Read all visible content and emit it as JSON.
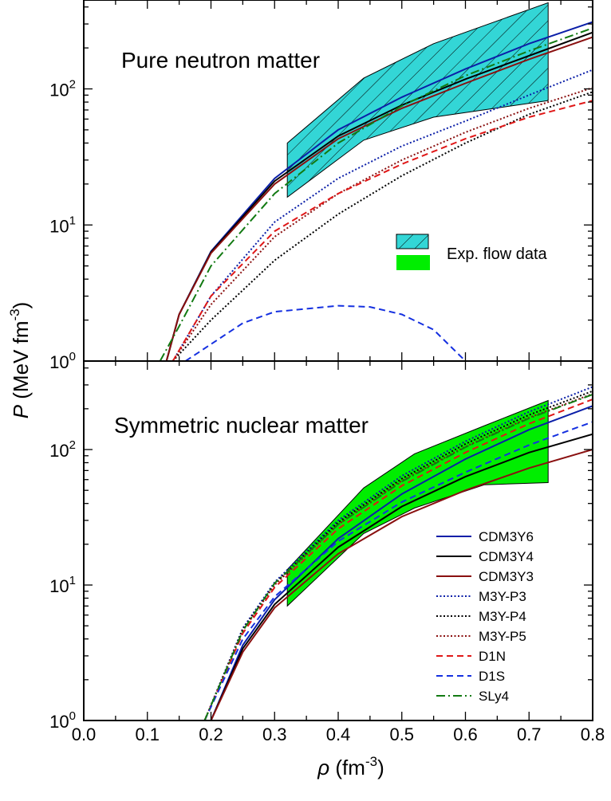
{
  "chart_data": [
    {
      "type": "line",
      "panel_title": "Pure neutron matter",
      "x_ticks": [
        "0.0",
        "0.1",
        "0.2",
        "0.3",
        "0.4",
        "0.5",
        "0.6",
        "0.7",
        "0.8"
      ],
      "xlim": [
        0.0,
        0.8
      ],
      "ylim": [
        1,
        450
      ],
      "y_scale": "log",
      "y_ticks": [
        {
          "base": "10",
          "exp": "0"
        },
        {
          "base": "10",
          "exp": "1"
        },
        {
          "base": "10",
          "exp": "2"
        }
      ],
      "band": {
        "style": "hatched",
        "fill": "#33d6d6",
        "legend_label": "Exp. flow data",
        "upper": [
          [
            0.32,
            40
          ],
          [
            0.44,
            120
          ],
          [
            0.55,
            215
          ],
          [
            0.73,
            430
          ]
        ],
        "lower": [
          [
            0.32,
            16
          ],
          [
            0.44,
            42
          ],
          [
            0.55,
            62
          ],
          [
            0.73,
            82
          ]
        ]
      },
      "series": [
        {
          "key": "CDM3Y6",
          "color": "#0b1fa8",
          "dash": "solid",
          "points": [
            [
              0.13,
              1.0
            ],
            [
              0.15,
              2.2
            ],
            [
              0.2,
              6.4
            ],
            [
              0.3,
              22
            ],
            [
              0.4,
              50
            ],
            [
              0.5,
              87
            ],
            [
              0.6,
              140
            ],
            [
              0.7,
              215
            ],
            [
              0.8,
              310
            ]
          ]
        },
        {
          "key": "CDM3Y4",
          "color": "#000000",
          "dash": "solid",
          "points": [
            [
              0.13,
              1.0
            ],
            [
              0.15,
              2.2
            ],
            [
              0.2,
              6.3
            ],
            [
              0.3,
              21
            ],
            [
              0.4,
              45
            ],
            [
              0.5,
              76
            ],
            [
              0.6,
              118
            ],
            [
              0.7,
              175
            ],
            [
              0.8,
              260
            ]
          ]
        },
        {
          "key": "CDM3Y3",
          "color": "#8a1010",
          "dash": "solid",
          "points": [
            [
              0.13,
              1.0
            ],
            [
              0.15,
              2.2
            ],
            [
              0.2,
              6.2
            ],
            [
              0.3,
              20
            ],
            [
              0.4,
              43
            ],
            [
              0.5,
              72
            ],
            [
              0.6,
              110
            ],
            [
              0.7,
              165
            ],
            [
              0.8,
              240
            ]
          ]
        },
        {
          "key": "M3Y-P3",
          "color": "#0b1fa8",
          "dash": "dot",
          "points": [
            [
              0.14,
              1.0
            ],
            [
              0.2,
              3.0
            ],
            [
              0.3,
              10.5
            ],
            [
              0.4,
              22
            ],
            [
              0.5,
              38
            ],
            [
              0.6,
              58
            ],
            [
              0.7,
              90
            ],
            [
              0.8,
              138
            ]
          ]
        },
        {
          "key": "M3Y-P4",
          "color": "#000000",
          "dash": "dot",
          "points": [
            [
              0.14,
              1.0
            ],
            [
              0.2,
              2.0
            ],
            [
              0.3,
              5.5
            ],
            [
              0.4,
              12
            ],
            [
              0.5,
              23
            ],
            [
              0.6,
              40
            ],
            [
              0.7,
              65
            ],
            [
              0.8,
              95
            ]
          ]
        },
        {
          "key": "M3Y-P5",
          "color": "#8a1010",
          "dash": "dot",
          "points": [
            [
              0.14,
              1.0
            ],
            [
              0.2,
              2.6
            ],
            [
              0.3,
              8.2
            ],
            [
              0.4,
              17
            ],
            [
              0.5,
              30
            ],
            [
              0.6,
              48
            ],
            [
              0.7,
              72
            ],
            [
              0.8,
              102
            ]
          ]
        },
        {
          "key": "D1N",
          "color": "#e01818",
          "dash": "dash",
          "points": [
            [
              0.14,
              1.0
            ],
            [
              0.2,
              3.0
            ],
            [
              0.3,
              9.0
            ],
            [
              0.4,
              17
            ],
            [
              0.5,
              28
            ],
            [
              0.6,
              43
            ],
            [
              0.7,
              62
            ],
            [
              0.8,
              82
            ]
          ]
        },
        {
          "key": "D1S",
          "color": "#1530e0",
          "dash": "dash",
          "points": [
            [
              0.16,
              1.0
            ],
            [
              0.25,
              1.9
            ],
            [
              0.3,
              2.3
            ],
            [
              0.4,
              2.55
            ],
            [
              0.45,
              2.5
            ],
            [
              0.5,
              2.2
            ],
            [
              0.55,
              1.7
            ],
            [
              0.6,
              1.0
            ]
          ]
        },
        {
          "key": "SLy4",
          "color": "#127a12",
          "dash": "dashdot",
          "points": [
            [
              0.12,
              1.0
            ],
            [
              0.15,
              1.8
            ],
            [
              0.2,
              5.0
            ],
            [
              0.3,
              17
            ],
            [
              0.4,
              40
            ],
            [
              0.5,
              75
            ],
            [
              0.6,
              125
            ],
            [
              0.7,
              190
            ],
            [
              0.8,
              280
            ]
          ]
        }
      ]
    },
    {
      "type": "line",
      "panel_title": "Symmetric nuclear matter",
      "x_ticks": [
        "0.0",
        "0.1",
        "0.2",
        "0.3",
        "0.4",
        "0.5",
        "0.6",
        "0.7",
        "0.8"
      ],
      "xlim": [
        0.0,
        0.8
      ],
      "ylim": [
        1,
        450
      ],
      "y_scale": "log",
      "y_ticks": [
        {
          "base": "10",
          "exp": "0"
        },
        {
          "base": "10",
          "exp": "1"
        },
        {
          "base": "10",
          "exp": "2"
        }
      ],
      "band": {
        "style": "solid",
        "fill": "#00ee00",
        "upper": [
          [
            0.32,
            13
          ],
          [
            0.44,
            52
          ],
          [
            0.52,
            93
          ],
          [
            0.63,
            150
          ],
          [
            0.73,
            230
          ]
        ],
        "lower": [
          [
            0.32,
            7
          ],
          [
            0.44,
            24
          ],
          [
            0.52,
            37
          ],
          [
            0.63,
            55
          ],
          [
            0.73,
            57
          ]
        ]
      },
      "series": [
        {
          "key": "CDM3Y6",
          "color": "#0b1fa8",
          "dash": "solid",
          "points": [
            [
              0.2,
              1.0
            ],
            [
              0.25,
              3.6
            ],
            [
              0.3,
              7.8
            ],
            [
              0.4,
              22
            ],
            [
              0.5,
              47
            ],
            [
              0.6,
              85
            ],
            [
              0.7,
              140
            ],
            [
              0.8,
              210
            ]
          ]
        },
        {
          "key": "CDM3Y4",
          "color": "#000000",
          "dash": "solid",
          "points": [
            [
              0.2,
              1.0
            ],
            [
              0.25,
              3.4
            ],
            [
              0.3,
              7.2
            ],
            [
              0.4,
              19
            ],
            [
              0.5,
              38
            ],
            [
              0.6,
              63
            ],
            [
              0.7,
              95
            ],
            [
              0.8,
              130
            ]
          ]
        },
        {
          "key": "CDM3Y3",
          "color": "#8a1010",
          "dash": "solid",
          "points": [
            [
              0.2,
              1.0
            ],
            [
              0.25,
              3.2
            ],
            [
              0.3,
              6.8
            ],
            [
              0.4,
              17
            ],
            [
              0.5,
              32
            ],
            [
              0.6,
              50
            ],
            [
              0.7,
              73
            ],
            [
              0.8,
              100
            ]
          ]
        },
        {
          "key": "M3Y-P3",
          "color": "#0b1fa8",
          "dash": "dot",
          "points": [
            [
              0.19,
              1.0
            ],
            [
              0.25,
              4.8
            ],
            [
              0.3,
              10.5
            ],
            [
              0.4,
              30
            ],
            [
              0.5,
              64
            ],
            [
              0.6,
              115
            ],
            [
              0.7,
              190
            ],
            [
              0.8,
              290
            ]
          ]
        },
        {
          "key": "M3Y-P4",
          "color": "#000000",
          "dash": "dot",
          "points": [
            [
              0.19,
              1.0
            ],
            [
              0.25,
              4.7
            ],
            [
              0.3,
              10.2
            ],
            [
              0.4,
              29
            ],
            [
              0.5,
              61
            ],
            [
              0.6,
              110
            ],
            [
              0.7,
              180
            ],
            [
              0.8,
              270
            ]
          ]
        },
        {
          "key": "M3Y-P5",
          "color": "#8a1010",
          "dash": "dot",
          "points": [
            [
              0.19,
              1.0
            ],
            [
              0.25,
              4.6
            ],
            [
              0.3,
              10.0
            ],
            [
              0.4,
              28
            ],
            [
              0.5,
              59
            ],
            [
              0.6,
              105
            ],
            [
              0.7,
              172
            ],
            [
              0.8,
              258
            ]
          ]
        },
        {
          "key": "D1N",
          "color": "#e01818",
          "dash": "dash",
          "points": [
            [
              0.19,
              1.0
            ],
            [
              0.25,
              4.4
            ],
            [
              0.3,
              9.6
            ],
            [
              0.4,
              26
            ],
            [
              0.5,
              54
            ],
            [
              0.6,
              95
            ],
            [
              0.7,
              155
            ],
            [
              0.8,
              235
            ]
          ]
        },
        {
          "key": "D1S",
          "color": "#1530e0",
          "dash": "dash",
          "points": [
            [
              0.19,
              1.0
            ],
            [
              0.25,
              4.0
            ],
            [
              0.3,
              8.2
            ],
            [
              0.4,
              21
            ],
            [
              0.5,
              41
            ],
            [
              0.6,
              68
            ],
            [
              0.7,
              108
            ],
            [
              0.8,
              160
            ]
          ]
        },
        {
          "key": "SLy4",
          "color": "#127a12",
          "dash": "dashdot",
          "points": [
            [
              0.19,
              1.0
            ],
            [
              0.25,
              4.6
            ],
            [
              0.3,
              10.3
            ],
            [
              0.4,
              28
            ],
            [
              0.5,
              58
            ],
            [
              0.6,
              104
            ],
            [
              0.7,
              170
            ],
            [
              0.8,
              255
            ]
          ]
        }
      ]
    }
  ],
  "legend_labels": [
    "CDM3Y6",
    "CDM3Y4",
    "CDM3Y3",
    "M3Y-P3",
    "M3Y-P4",
    "M3Y-P5",
    "D1N",
    "D1S",
    "SLy4"
  ],
  "band_legend_label": "Exp. flow data",
  "y_axis_label": {
    "symbol": "P",
    "text": " (MeV fm",
    "exp": "-3",
    "close": ")"
  },
  "x_axis_label": {
    "symbol": "ρ",
    "text": " (fm",
    "exp": "-3",
    "close": ")"
  }
}
